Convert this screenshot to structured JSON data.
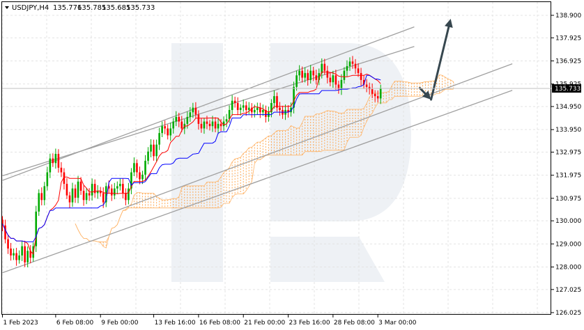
{
  "chart_data": {
    "type": "candlestick",
    "title": "USDJPY,H4",
    "ohlc_header": [
      "135.776",
      "135.785",
      "135.685",
      "135.733"
    ],
    "y_ticks": [
      "138.900",
      "137.925",
      "136.925",
      "135.925",
      "134.950",
      "133.950",
      "132.975",
      "131.975",
      "130.975",
      "130.000",
      "129.000",
      "128.000",
      "127.025",
      "126.025"
    ],
    "y_tick_values": [
      138.9,
      137.925,
      136.925,
      135.925,
      134.95,
      133.95,
      132.975,
      131.975,
      130.975,
      130.0,
      129.0,
      128.0,
      127.025,
      126.025
    ],
    "ylim": [
      126.025,
      138.9
    ],
    "x_ticks": [
      "1 Feb 2023",
      "6 Feb 08:00",
      "9 Feb 00:00",
      "13 Feb 16:00",
      "16 Feb 08:00",
      "21 Feb 00:00",
      "23 Feb 16:00",
      "28 Feb 08:00",
      "3 Mar 00:00"
    ],
    "x_tick_bars": [
      0,
      19,
      35,
      54,
      70,
      86,
      102,
      118,
      134
    ],
    "current_price": "135.733",
    "current_price_value": 135.733,
    "closes": [
      129.8,
      129.2,
      128.8,
      128.5,
      128.6,
      128.3,
      128.5,
      128.9,
      128.2,
      128.7,
      128.4,
      128.9,
      130.4,
      131.2,
      130.9,
      131.5,
      132.1,
      132.7,
      132.5,
      132.9,
      132.3,
      132.1,
      131.6,
      131.1,
      130.8,
      131.4,
      131.0,
      131.7,
      131.3,
      130.9,
      131.2,
      131.1,
      131.6,
      131.2,
      131.3,
      131.2,
      130.8,
      131.5,
      131.4,
      131.1,
      131.4,
      131.5,
      131.6,
      131.2,
      130.9,
      131.4,
      132.1,
      132.5,
      132.1,
      131.8,
      132.0,
      132.6,
      133.0,
      133.3,
      132.8,
      133.3,
      133.8,
      134.1,
      134.0,
      133.7,
      134.0,
      134.3,
      134.5,
      134.3,
      134.0,
      134.2,
      134.5,
      134.7,
      134.9,
      134.6,
      134.2,
      134.0,
      134.3,
      134.2,
      134.1,
      134.3,
      134.0,
      134.2,
      134.1,
      134.3,
      134.4,
      134.8,
      135.2,
      135.1,
      134.8,
      134.9,
      135.0,
      134.8,
      134.9,
      134.7,
      134.8,
      134.9,
      134.7,
      134.8,
      134.5,
      134.7,
      135.1,
      135.4,
      134.9,
      134.8,
      134.6,
      134.8,
      134.7,
      134.9,
      135.8,
      136.3,
      136.5,
      136.2,
      136.4,
      136.1,
      136.5,
      136.3,
      136.1,
      136.4,
      136.8,
      136.5,
      136.2,
      136.0,
      136.3,
      135.9,
      135.7,
      136.1,
      136.5,
      136.7,
      136.9,
      136.8,
      136.6,
      136.4,
      136.1,
      135.9,
      135.8,
      135.7,
      135.5,
      135.4,
      135.3,
      135.733
    ],
    "series": [
      {
        "name": "",
        "role": "tenkan",
        "color": "#ff0000"
      },
      {
        "name": "",
        "role": "kijun",
        "color": "#0000ff"
      },
      {
        "name": "",
        "role": "kumo",
        "color": "#ff9933"
      }
    ],
    "annotations": [
      {
        "type": "trend-line",
        "from": [
          0,
          131.75
        ],
        "to": [
          147,
          138.4
        ],
        "color": "#a0a0a0"
      },
      {
        "type": "trend-line",
        "from": [
          0,
          131.95
        ],
        "to": [
          147,
          137.55
        ],
        "color": "#a0a0a0"
      },
      {
        "type": "trend-line",
        "from": [
          31,
          130.0
        ],
        "to": [
          182,
          136.8
        ],
        "color": "#a0a0a0"
      },
      {
        "type": "trend-line",
        "from": [
          0,
          127.75
        ],
        "to": [
          182,
          135.65
        ],
        "color": "#a0a0a0"
      },
      {
        "type": "arrow",
        "from": [
          149,
          135.75
        ],
        "to": [
          153,
          135.25
        ],
        "color": "#37474f"
      },
      {
        "type": "arrow",
        "from": [
          153,
          135.25
        ],
        "to": [
          160,
          138.75
        ],
        "color": "#37474f"
      }
    ],
    "grid": true,
    "candle_colors": {
      "up": "#00aa00",
      "down": "#ff0000"
    }
  }
}
